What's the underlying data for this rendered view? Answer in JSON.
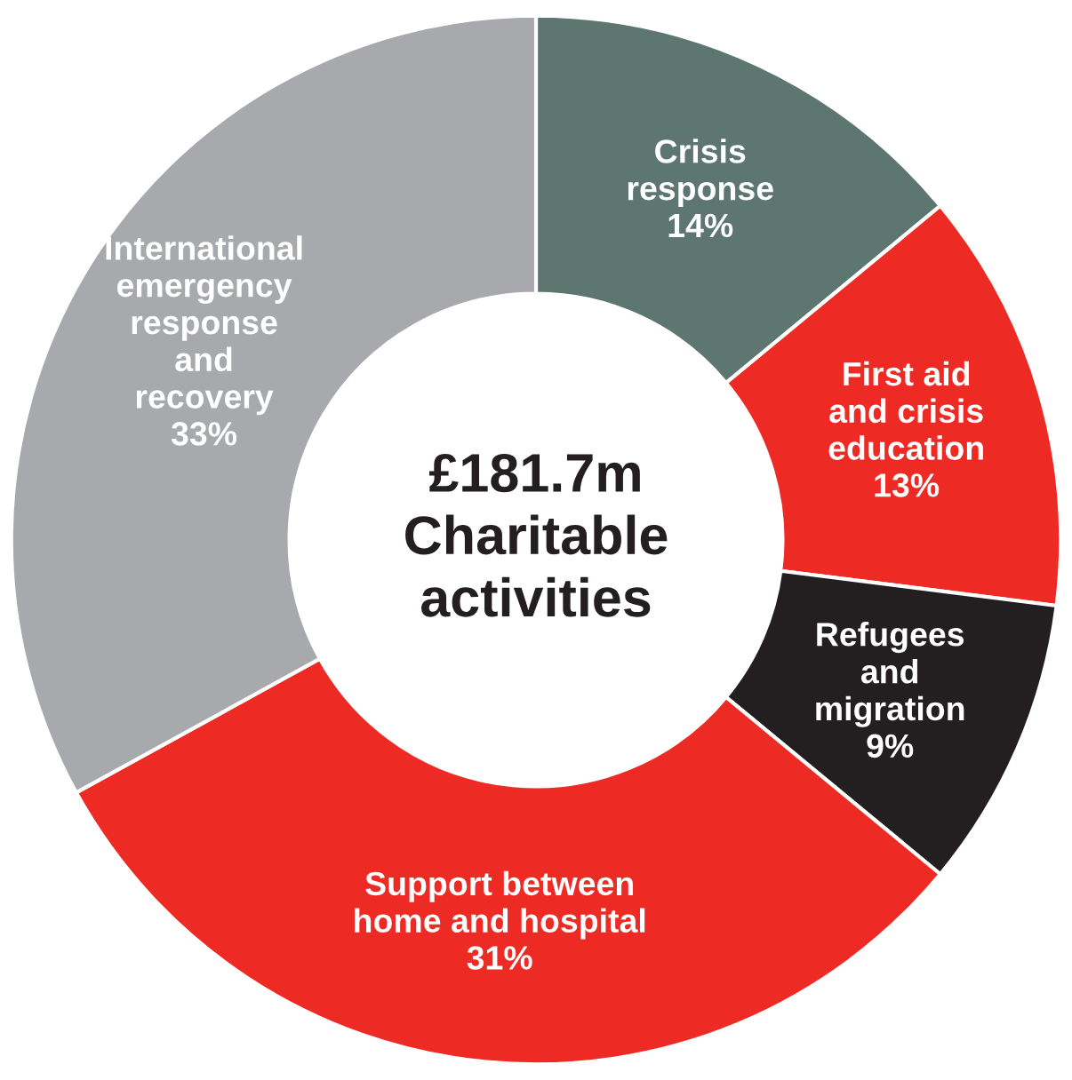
{
  "chart_data": {
    "type": "donut",
    "title": "£181.7m\nCharitable\nactivities",
    "categories": [
      "Crisis\nresponse",
      "First aid\nand crisis\neducation",
      "Refugees\nand\nmigration",
      "Support between\nhome and hospital",
      "International\nemergency\nresponse\nand\nrecovery"
    ],
    "values": [
      14,
      13,
      9,
      31,
      33
    ],
    "value_labels": [
      "14%",
      "13%",
      "9%",
      "31%",
      "33%"
    ],
    "colors": [
      "#5e7670",
      "#ee2a24",
      "#231f20",
      "#ee2a24",
      "#a7a9ac"
    ],
    "legend": false
  }
}
